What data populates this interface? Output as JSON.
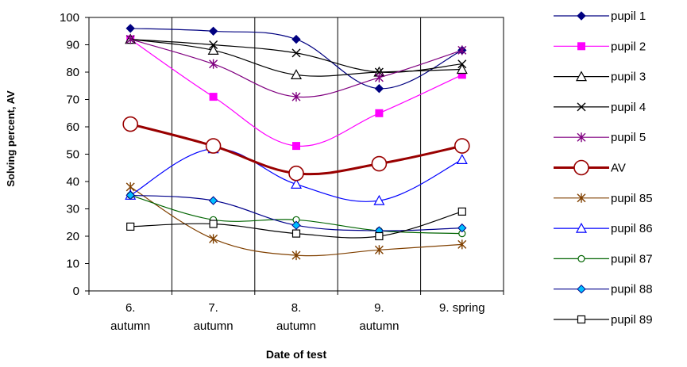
{
  "chart_data": {
    "type": "line",
    "xlabel": "Date of test",
    "ylabel": "Solving percent, AV",
    "categories": [
      [
        "6.",
        "autumn"
      ],
      [
        "7.",
        "autumn"
      ],
      [
        "8.",
        "autumn"
      ],
      [
        "9.",
        "autumn"
      ],
      [
        "9. spring"
      ]
    ],
    "ylim": [
      0,
      100
    ],
    "yticks": [
      0,
      10,
      20,
      30,
      40,
      50,
      60,
      70,
      80,
      90,
      100
    ],
    "grid": "vertical lines between categories",
    "legend_position": "right",
    "series": [
      {
        "name": "pupil 1",
        "values": [
          96,
          95,
          92,
          74,
          88
        ],
        "color": "#000080",
        "marker": "diamond-filled",
        "width": 1.2
      },
      {
        "name": "pupil 2",
        "values": [
          92,
          71,
          53,
          65,
          79
        ],
        "color": "#FF00FF",
        "marker": "square-filled",
        "width": 1.2
      },
      {
        "name": "pupil 3",
        "values": [
          92,
          88,
          79,
          80,
          81
        ],
        "color": "#000000",
        "marker": "triangle-open",
        "width": 1.2
      },
      {
        "name": "pupil 4",
        "values": [
          92,
          90,
          87,
          80,
          83
        ],
        "color": "#000000",
        "marker": "x",
        "width": 1.2
      },
      {
        "name": "pupil 5",
        "values": [
          92,
          83,
          71,
          78,
          88
        ],
        "color": "#800080",
        "marker": "star",
        "width": 1.2
      },
      {
        "name": "AV",
        "values": [
          61,
          53,
          43,
          46.5,
          53
        ],
        "color": "#990000",
        "marker": "circle-open",
        "width": 3
      },
      {
        "name": "pupil 85",
        "values": [
          38,
          19,
          13,
          15,
          17
        ],
        "color": "#804000",
        "marker": "star",
        "width": 1.2
      },
      {
        "name": "pupil 86",
        "values": [
          35,
          52,
          39,
          33,
          48
        ],
        "color": "#0000FF",
        "marker": "triangle-open",
        "width": 1.2
      },
      {
        "name": "pupil 87",
        "values": [
          35,
          26,
          26,
          22,
          21
        ],
        "color": "#006400",
        "marker": "circle-open-small",
        "width": 1.2
      },
      {
        "name": "pupil 88",
        "values": [
          35,
          33,
          24,
          22,
          23
        ],
        "color": "#00008B",
        "marker": "diamond-cyan",
        "width": 1.2
      },
      {
        "name": "pupil 89",
        "values": [
          23.5,
          24.5,
          21,
          20,
          29
        ],
        "color": "#000000",
        "marker": "square-open",
        "width": 1.2
      }
    ]
  }
}
